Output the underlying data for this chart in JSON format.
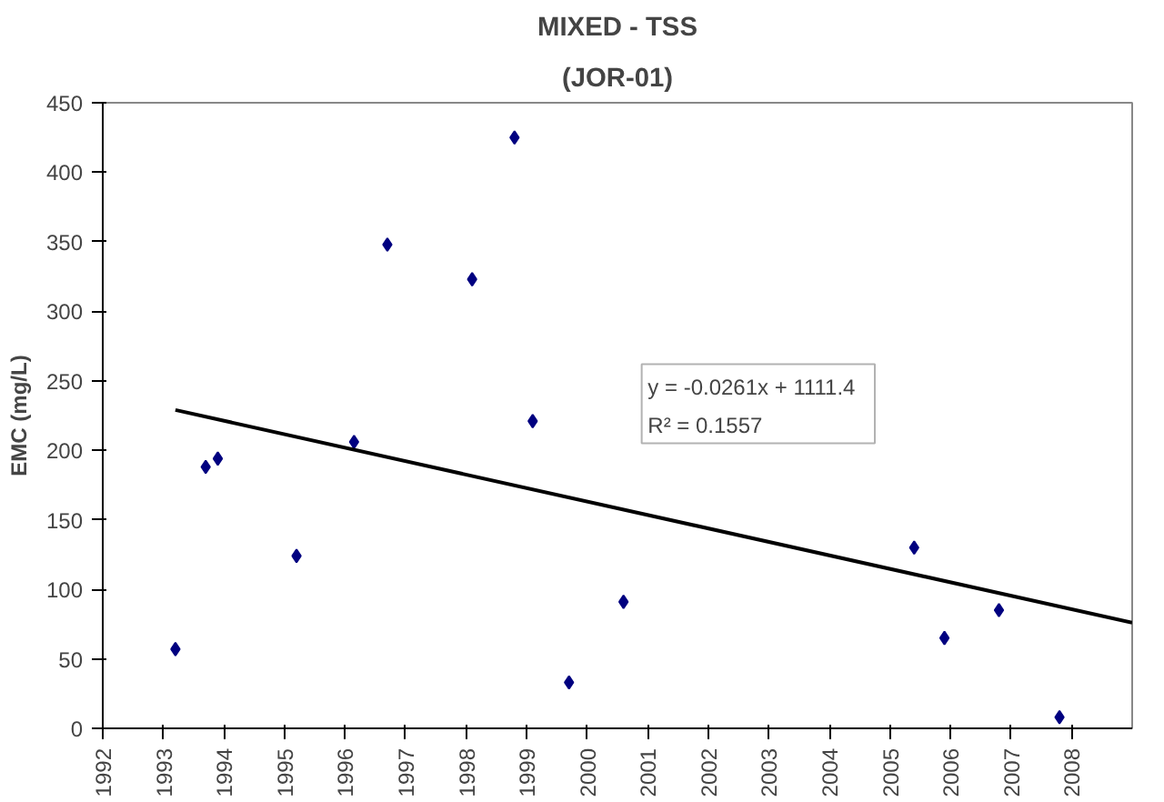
{
  "chart_data": {
    "type": "scatter",
    "title": "MIXED - TSS",
    "subtitle": "(JOR-01)",
    "ylabel": "EMC (mg/L)",
    "series": [
      {
        "color": "#000080",
        "marker": "diamond",
        "x": [
          1993.2,
          1993.7,
          1993.9,
          1995.2,
          1996.15,
          1996.7,
          1998.1,
          1998.8,
          1999.1,
          1999.7,
          2000.6,
          2005.4,
          2005.9,
          2006.8,
          2007.8
        ],
        "values": [
          57,
          188,
          194,
          124,
          206,
          348,
          323,
          425,
          221,
          33,
          91,
          130,
          65,
          85,
          8
        ]
      },
      {
        "type": "line",
        "color": "#000000",
        "x": [
          1993.2,
          2009
        ],
        "values": [
          229,
          76
        ]
      }
    ],
    "annotations": [
      "y = -0.0261x + 1111.4",
      "R² = 0.1557"
    ],
    "xlim": [
      1992,
      2009
    ],
    "xticks": [
      1992,
      1993,
      1994,
      1995,
      1996,
      1997,
      1998,
      1999,
      2000,
      2001,
      2002,
      2003,
      2004,
      2005,
      2006,
      2007,
      2008
    ],
    "ylim": [
      0,
      450
    ],
    "yticks": [
      0,
      50,
      100,
      150,
      200,
      250,
      300,
      350,
      400,
      450
    ],
    "grid": false
  }
}
